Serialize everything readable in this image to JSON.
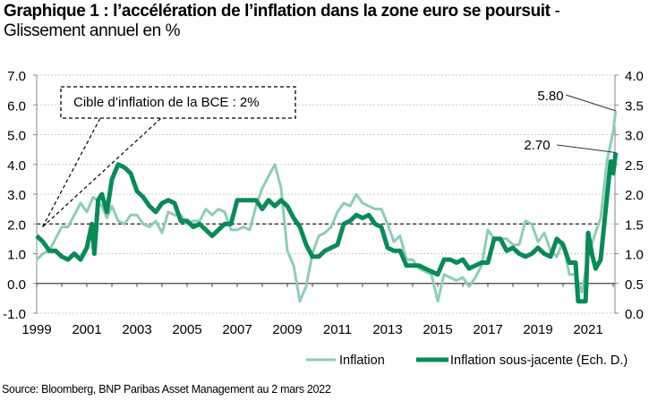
{
  "header": {
    "title_bold": "Graphique 1 : l’accélération de l’inflation dans la zone euro se poursuit",
    "title_suffix": " -",
    "subtitle": "Glissement annuel en %"
  },
  "source": "Source: Bloomberg, BNP Paribas Asset Management au 2 mars 2022",
  "chart_data": {
    "type": "line",
    "title": "Graphique 1 : l’accélération de l’inflation dans la zone euro se poursuit - Glissement annuel en %",
    "xlabel": "",
    "ylabel_left": "",
    "ylabel_right": "",
    "x_ticks": [
      "1999",
      "2001",
      "2003",
      "2005",
      "2007",
      "2009",
      "2011",
      "2013",
      "2015",
      "2017",
      "2019",
      "2021"
    ],
    "xlim": [
      1999,
      2022.2
    ],
    "y_left": {
      "ticks": [
        "-1.0",
        "0.0",
        "1.0",
        "2.0",
        "3.0",
        "4.0",
        "5.0",
        "6.0",
        "7.0"
      ],
      "lim": [
        -1,
        7
      ]
    },
    "y_right": {
      "ticks": [
        "0.0",
        "0.5",
        "1.0",
        "1.5",
        "2.0",
        "2.5",
        "3.0",
        "3.5",
        "4.0"
      ],
      "lim": [
        0,
        4
      ]
    },
    "grid": true,
    "reference_line": {
      "value": 2.0,
      "axis": "left",
      "style": "dashed",
      "x_end": 2021.4
    },
    "annotation_box": {
      "text": "Cible d’inflation de la BCE : 2%",
      "points_to": {
        "x": 1999.2,
        "y": 1.9
      }
    },
    "point_labels": [
      {
        "text": "5.80",
        "series": "Inflation",
        "x": 2022.1,
        "y": 5.8
      },
      {
        "text": "2.70",
        "series": "Inflation sous-jacente (Ech. D.)",
        "x": 2022.1,
        "y": 2.7
      }
    ],
    "legend": {
      "position": "bottom",
      "entries": [
        "Inflation",
        "Inflation sous-jacente (Ech. D.)"
      ]
    },
    "series": [
      {
        "name": "Inflation",
        "axis": "left",
        "color": "#8fcdb5",
        "x": [
          1999.0,
          1999.25,
          1999.5,
          1999.75,
          2000.0,
          2000.25,
          2000.5,
          2000.75,
          2001.0,
          2001.25,
          2001.4,
          2001.6,
          2001.8,
          2002.0,
          2002.25,
          2002.5,
          2002.75,
          2003.0,
          2003.25,
          2003.5,
          2003.75,
          2004.0,
          2004.25,
          2004.5,
          2004.75,
          2005.0,
          2005.25,
          2005.5,
          2005.75,
          2006.0,
          2006.25,
          2006.5,
          2006.75,
          2007.0,
          2007.25,
          2007.5,
          2007.75,
          2008.0,
          2008.25,
          2008.5,
          2008.75,
          2009.0,
          2009.25,
          2009.5,
          2009.75,
          2010.0,
          2010.25,
          2010.5,
          2010.75,
          2011.0,
          2011.25,
          2011.5,
          2011.75,
          2012.0,
          2012.25,
          2012.5,
          2012.75,
          2013.0,
          2013.25,
          2013.5,
          2013.75,
          2014.0,
          2014.25,
          2014.5,
          2014.75,
          2015.0,
          2015.25,
          2015.5,
          2015.75,
          2016.0,
          2016.25,
          2016.5,
          2016.75,
          2017.0,
          2017.25,
          2017.5,
          2017.75,
          2018.0,
          2018.25,
          2018.5,
          2018.75,
          2019.0,
          2019.25,
          2019.5,
          2019.75,
          2020.0,
          2020.25,
          2020.5,
          2020.75,
          2021.0,
          2021.25,
          2021.5,
          2021.75,
          2022.0,
          2022.1
        ],
        "values": [
          0.8,
          1.0,
          1.1,
          1.5,
          1.9,
          1.9,
          2.3,
          2.7,
          2.4,
          2.9,
          2.8,
          2.6,
          2.2,
          2.6,
          2.1,
          2.0,
          2.3,
          2.3,
          2.0,
          1.9,
          2.1,
          1.7,
          2.4,
          2.3,
          2.3,
          2.0,
          2.1,
          2.1,
          2.5,
          2.3,
          2.5,
          2.4,
          1.8,
          1.8,
          1.9,
          1.8,
          2.6,
          3.2,
          3.6,
          4.0,
          3.2,
          1.1,
          0.6,
          -0.6,
          -0.1,
          1.0,
          1.6,
          1.7,
          1.9,
          2.4,
          2.7,
          2.6,
          3.0,
          2.7,
          2.6,
          2.5,
          2.5,
          2.0,
          1.4,
          1.6,
          0.8,
          0.8,
          0.5,
          0.4,
          0.3,
          -0.6,
          0.3,
          0.2,
          0.1,
          0.2,
          -0.1,
          0.2,
          0.6,
          1.8,
          1.5,
          1.5,
          1.5,
          1.3,
          1.3,
          2.1,
          2.0,
          1.4,
          1.7,
          1.1,
          0.9,
          1.4,
          0.3,
          0.3,
          -0.3,
          0.9,
          1.6,
          2.2,
          4.1,
          5.1,
          5.8
        ]
      },
      {
        "name": "Inflation sous-jacente (Ech. D.)",
        "axis": "right",
        "color": "#0b8a57",
        "x": [
          1999.0,
          1999.25,
          1999.5,
          1999.75,
          2000.0,
          2000.25,
          2000.5,
          2000.75,
          2001.0,
          2001.2,
          2001.3,
          2001.45,
          2001.6,
          2001.8,
          2002.0,
          2002.25,
          2002.5,
          2002.75,
          2003.0,
          2003.25,
          2003.5,
          2003.75,
          2004.0,
          2004.25,
          2004.5,
          2004.75,
          2005.0,
          2005.25,
          2005.5,
          2005.75,
          2006.0,
          2006.25,
          2006.5,
          2006.75,
          2007.0,
          2007.25,
          2007.5,
          2007.75,
          2008.0,
          2008.25,
          2008.5,
          2008.75,
          2009.0,
          2009.25,
          2009.5,
          2009.75,
          2010.0,
          2010.25,
          2010.5,
          2010.75,
          2011.0,
          2011.25,
          2011.5,
          2011.75,
          2012.0,
          2012.25,
          2012.5,
          2012.75,
          2013.0,
          2013.25,
          2013.5,
          2013.75,
          2014.0,
          2014.25,
          2014.5,
          2014.75,
          2015.0,
          2015.25,
          2015.5,
          2015.75,
          2016.0,
          2016.25,
          2016.5,
          2016.75,
          2017.0,
          2017.25,
          2017.5,
          2017.75,
          2018.0,
          2018.25,
          2018.5,
          2018.75,
          2019.0,
          2019.25,
          2019.5,
          2019.75,
          2020.0,
          2020.25,
          2020.5,
          2020.6,
          2020.75,
          2020.9,
          2021.0,
          2021.15,
          2021.3,
          2021.5,
          2021.75,
          2021.9,
          2022.0,
          2022.1
        ],
        "values": [
          1.3,
          1.2,
          1.05,
          1.05,
          0.95,
          0.9,
          1.0,
          0.9,
          1.1,
          1.5,
          1.0,
          1.9,
          2.0,
          1.7,
          2.25,
          2.5,
          2.45,
          2.35,
          2.05,
          1.95,
          1.8,
          1.7,
          1.85,
          1.9,
          1.85,
          1.55,
          1.55,
          1.45,
          1.5,
          1.4,
          1.3,
          1.4,
          1.5,
          1.5,
          1.9,
          1.9,
          1.9,
          1.9,
          1.75,
          1.9,
          1.8,
          1.9,
          1.8,
          1.6,
          1.45,
          1.15,
          0.95,
          0.95,
          1.05,
          1.1,
          1.15,
          1.5,
          1.55,
          1.65,
          1.6,
          1.65,
          1.5,
          1.45,
          1.1,
          1.05,
          1.05,
          0.8,
          0.8,
          0.8,
          0.75,
          0.7,
          0.65,
          0.9,
          0.9,
          0.85,
          0.9,
          0.75,
          0.8,
          0.85,
          0.85,
          1.25,
          1.25,
          1.05,
          1.1,
          1.0,
          0.95,
          1.0,
          1.1,
          1.0,
          0.95,
          1.25,
          1.15,
          0.85,
          0.85,
          0.2,
          0.2,
          0.2,
          1.35,
          1.0,
          0.75,
          0.9,
          1.95,
          2.55,
          2.35,
          2.7
        ]
      }
    ]
  }
}
